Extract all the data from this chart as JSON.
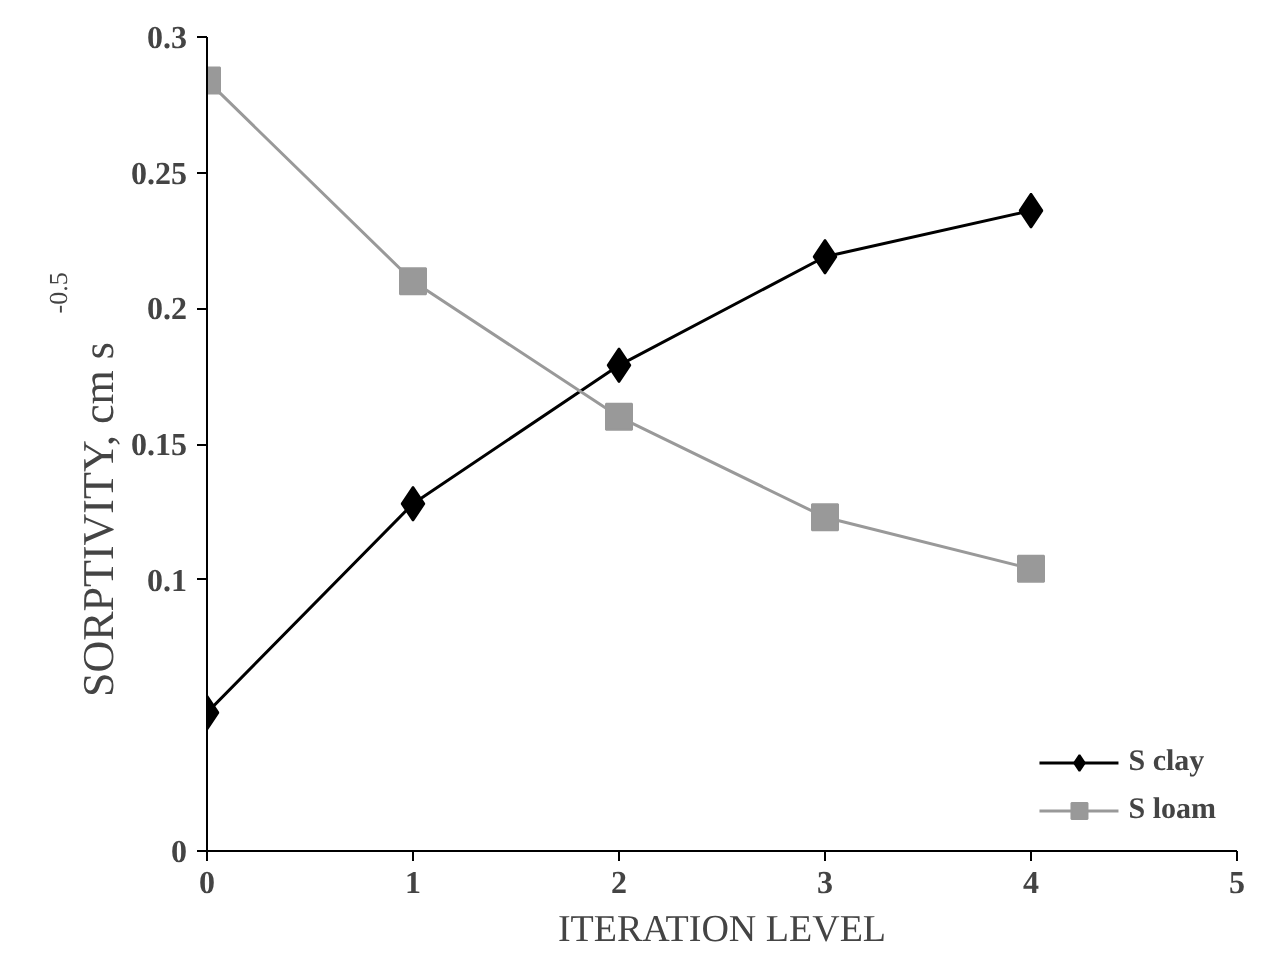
{
  "chart_data": {
    "type": "line",
    "xlabel": "ITERATION LEVEL",
    "ylabel": "SORPTIVITY, cm s$^{-0.5}$",
    "x": [
      0,
      1,
      2,
      3,
      4
    ],
    "series": [
      {
        "name": "S clay",
        "color": "#000000",
        "marker": "diamond",
        "values": [
          0.051,
          0.128,
          0.179,
          0.219,
          0.236
        ]
      },
      {
        "name": "S loam",
        "color": "#999999",
        "marker": "square",
        "values": [
          0.284,
          0.21,
          0.16,
          0.123,
          0.104
        ]
      }
    ],
    "xlim": [
      0,
      5
    ],
    "xticks": [
      0,
      1,
      2,
      3,
      4,
      5
    ],
    "ylim": [
      0,
      0.3
    ],
    "yticks": [
      0,
      0.1,
      0.15,
      0.2,
      0.25,
      0.3
    ],
    "grid": false,
    "legend": "bottom right",
    "line_style": "solid"
  }
}
